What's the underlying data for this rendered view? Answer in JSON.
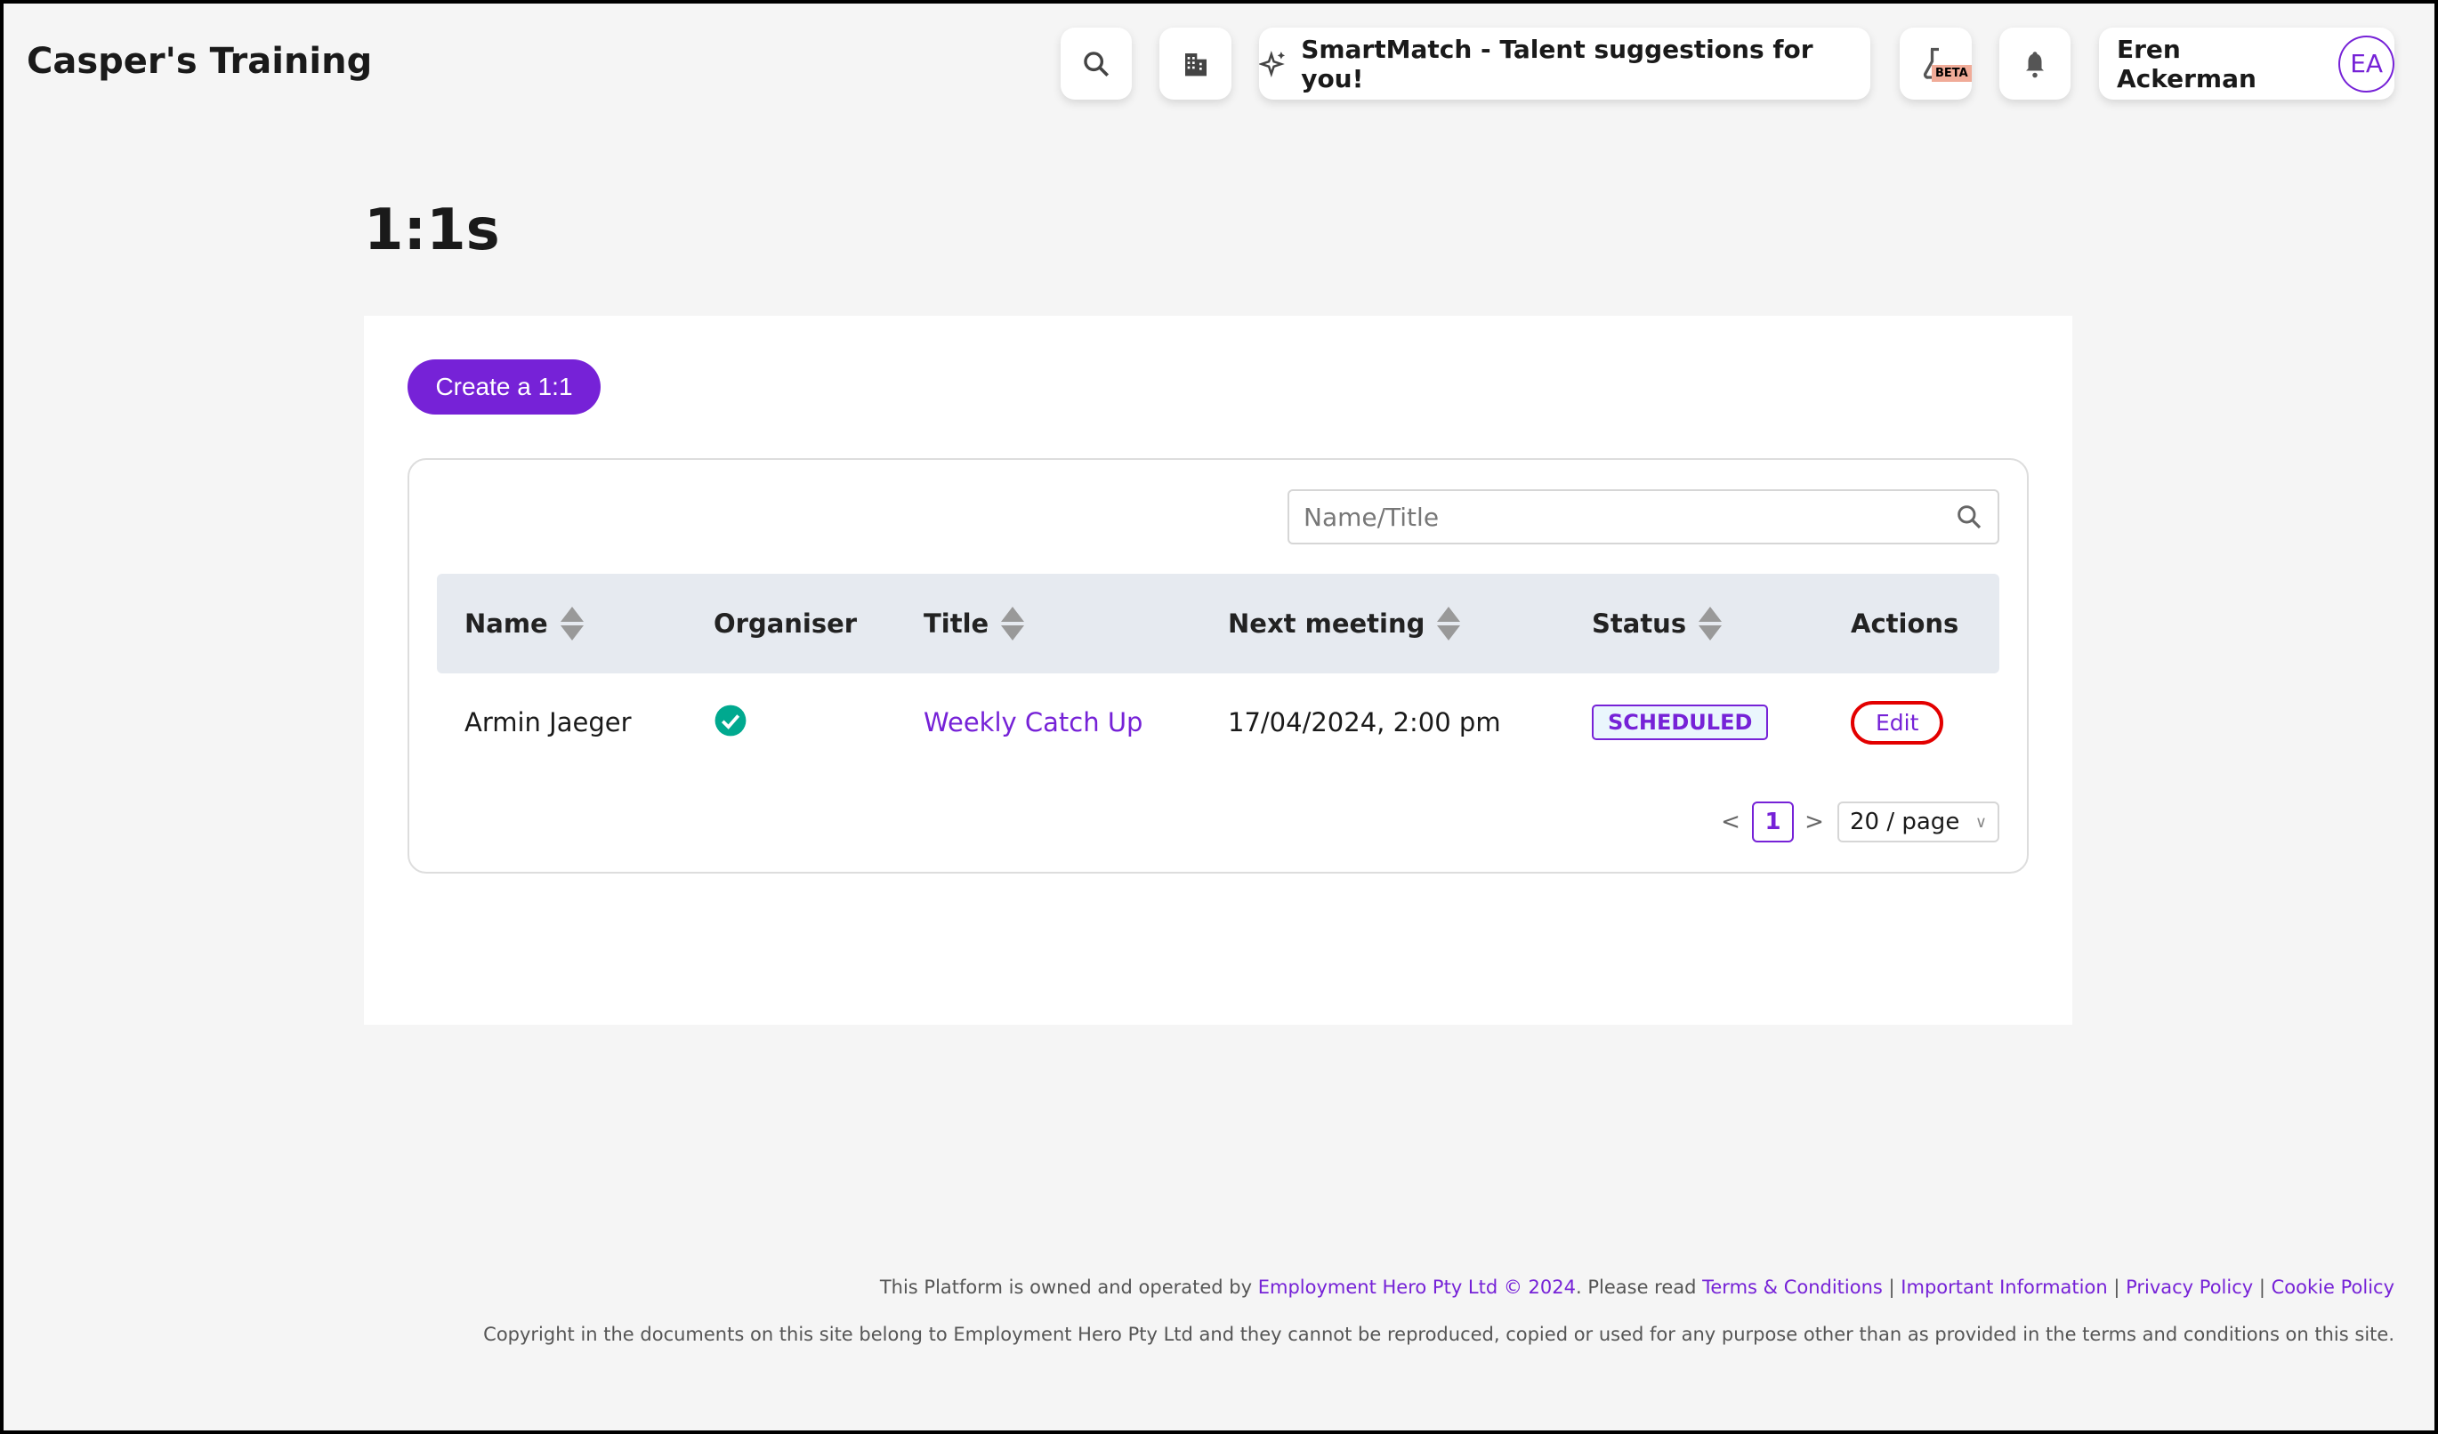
{
  "header": {
    "brand": "Casper's Training",
    "smartmatch_label": "SmartMatch - Talent suggestions for you!",
    "beta_badge": "BETA",
    "user_name": "Eren Ackerman",
    "user_initials": "EA"
  },
  "page": {
    "title": "1:1s",
    "create_button": "Create a 1:1"
  },
  "search": {
    "placeholder": "Name/Title",
    "value": ""
  },
  "table": {
    "columns": [
      "Name",
      "Organiser",
      "Title",
      "Next meeting",
      "Status",
      "Actions"
    ],
    "rows": [
      {
        "name": "Armin Jaeger",
        "organiser": true,
        "title": "Weekly Catch Up",
        "next_meeting": "17/04/2024, 2:00 pm",
        "status": "SCHEDULED",
        "action": "Edit"
      }
    ]
  },
  "pagination": {
    "prev": "<",
    "current": "1",
    "next": ">",
    "page_size": "20 / page"
  },
  "footer": {
    "text1": "This Platform is owned and operated by ",
    "owner_link": "Employment Hero Pty Ltd © 2024",
    "text2": ". Please read ",
    "terms": "Terms & Conditions",
    "sep": " | ",
    "important": "Important Information",
    "privacy": "Privacy Policy",
    "cookie": "Cookie Policy",
    "copyright": "Copyright in the documents on this site belong to Employment Hero Pty Ltd and they cannot be reproduced, copied or used for any purpose other than as provided in the terms and conditions on this site."
  },
  "colors": {
    "accent": "#7622d7",
    "success": "#00a98f",
    "highlight": "#e30000"
  }
}
